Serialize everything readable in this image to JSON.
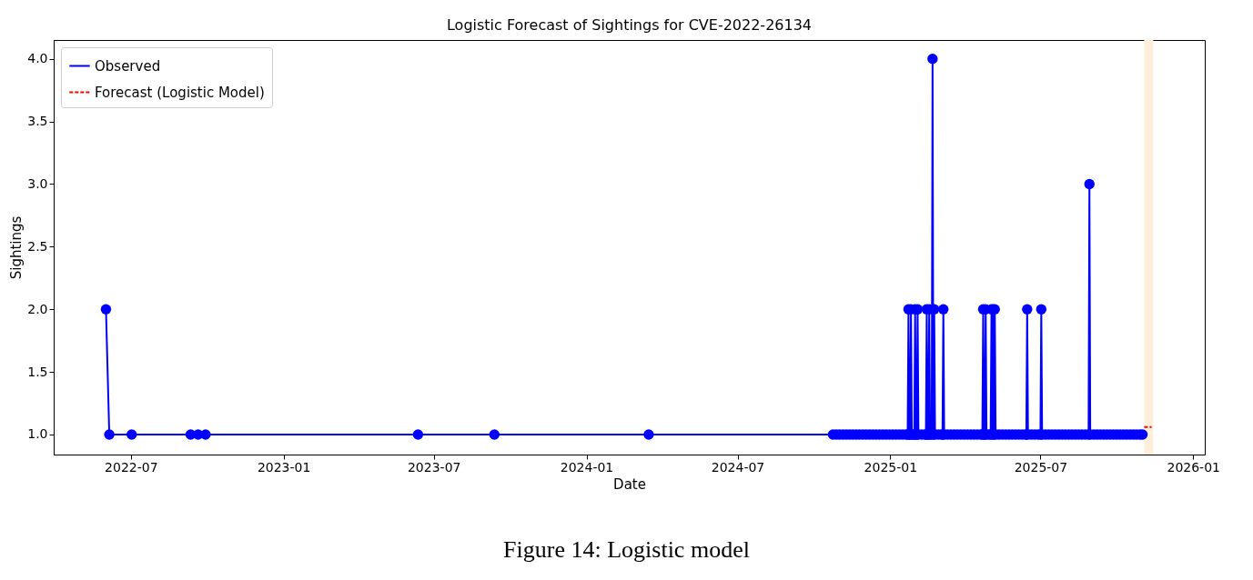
{
  "chart_data": {
    "type": "line",
    "title": "Logistic Forecast of Sightings for CVE-2022-26134",
    "xlabel": "Date",
    "ylabel": "Sightings",
    "annotations": [
      "Figure 14: Logistic model"
    ],
    "xlim": [
      "2022-03-30",
      "2026-01-15"
    ],
    "xticks": [
      {
        "value": "2022-07-01",
        "label": "2022-07"
      },
      {
        "value": "2023-01-01",
        "label": "2023-01"
      },
      {
        "value": "2023-07-01",
        "label": "2023-07"
      },
      {
        "value": "2024-01-01",
        "label": "2024-01"
      },
      {
        "value": "2024-07-01",
        "label": "2024-07"
      },
      {
        "value": "2025-01-01",
        "label": "2025-01"
      },
      {
        "value": "2025-07-01",
        "label": "2025-07"
      },
      {
        "value": "2026-01-01",
        "label": "2026-01"
      }
    ],
    "ylim": [
      0.84,
      4.15
    ],
    "yticks": [
      {
        "value": 1,
        "label": "1.0"
      },
      {
        "value": 1.5,
        "label": "1.5"
      },
      {
        "value": 2,
        "label": "2.0"
      },
      {
        "value": 2.5,
        "label": "2.5"
      },
      {
        "value": 3,
        "label": "3.0"
      },
      {
        "value": 3.5,
        "label": "3.5"
      },
      {
        "value": 4,
        "label": "4.0"
      }
    ],
    "grid": false,
    "legend": "top left",
    "bands": [
      {
        "axis": "x",
        "from": "2025-11-03",
        "to": "2025-11-14",
        "color": "#fdefdc"
      }
    ],
    "series": [
      {
        "name": "Observed",
        "color": "#0000ff",
        "marker": "circle",
        "line_style": "solid",
        "x": [
          "2022-06-01",
          "2022-06-05",
          "2022-07-02",
          "2022-09-11",
          "2022-09-20",
          "2022-09-29",
          "2023-06-12",
          "2023-09-12",
          "2024-03-16",
          "2024-10-24",
          "2024-10-28",
          "2024-11-01",
          "2024-11-05",
          "2024-11-09",
          "2024-11-13",
          "2024-11-17",
          "2024-11-21",
          "2024-11-25",
          "2024-11-29",
          "2024-12-03",
          "2024-12-07",
          "2024-12-11",
          "2024-12-15",
          "2024-12-19",
          "2024-12-23",
          "2024-12-27",
          "2024-12-31",
          "2025-01-04",
          "2025-01-08",
          "2025-01-12",
          "2025-01-16",
          "2025-01-20",
          "2025-01-22",
          "2025-01-23",
          "2025-01-24",
          "2025-01-25",
          "2025-01-26",
          "2025-01-27",
          "2025-01-29",
          "2025-01-30",
          "2025-01-31",
          "2025-02-01",
          "2025-02-02",
          "2025-02-03",
          "2025-02-04",
          "2025-02-08",
          "2025-02-12",
          "2025-02-13",
          "2025-02-14",
          "2025-02-15",
          "2025-02-16",
          "2025-02-17",
          "2025-02-18",
          "2025-02-20",
          "2025-02-21",
          "2025-02-22",
          "2025-02-23",
          "2025-02-24",
          "2025-02-28",
          "2025-03-04",
          "2025-03-05",
          "2025-03-06",
          "2025-03-07",
          "2025-03-11",
          "2025-03-15",
          "2025-03-19",
          "2025-03-23",
          "2025-03-27",
          "2025-03-31",
          "2025-04-04",
          "2025-04-08",
          "2025-04-12",
          "2025-04-16",
          "2025-04-20",
          "2025-04-22",
          "2025-04-23",
          "2025-04-24",
          "2025-04-25",
          "2025-04-26",
          "2025-04-27",
          "2025-04-30",
          "2025-05-02",
          "2025-05-03",
          "2025-05-04",
          "2025-05-05",
          "2025-05-06",
          "2025-05-07",
          "2025-05-08",
          "2025-05-12",
          "2025-05-16",
          "2025-05-20",
          "2025-05-24",
          "2025-05-28",
          "2025-06-01",
          "2025-06-05",
          "2025-06-09",
          "2025-06-13",
          "2025-06-14",
          "2025-06-15",
          "2025-06-16",
          "2025-06-20",
          "2025-06-24",
          "2025-06-28",
          "2025-07-01",
          "2025-07-02",
          "2025-07-03",
          "2025-07-07",
          "2025-07-11",
          "2025-07-15",
          "2025-07-19",
          "2025-07-23",
          "2025-07-27",
          "2025-07-31",
          "2025-08-04",
          "2025-08-08",
          "2025-08-12",
          "2025-08-16",
          "2025-08-20",
          "2025-08-24",
          "2025-08-28",
          "2025-08-29",
          "2025-08-30",
          "2025-09-03",
          "2025-09-07",
          "2025-09-11",
          "2025-09-15",
          "2025-09-19",
          "2025-09-23",
          "2025-09-27",
          "2025-10-01",
          "2025-10-05",
          "2025-10-09",
          "2025-10-13",
          "2025-10-17",
          "2025-10-21",
          "2025-10-25",
          "2025-10-29",
          "2025-11-01"
        ],
        "values": [
          2,
          1,
          1,
          1,
          1,
          1,
          1,
          1,
          1,
          1,
          1,
          1,
          1,
          1,
          1,
          1,
          1,
          1,
          1,
          1,
          1,
          1,
          1,
          1,
          1,
          1,
          1,
          1,
          1,
          1,
          1,
          1,
          1,
          2,
          1,
          1,
          2,
          1,
          1,
          1,
          2,
          1,
          1,
          2,
          1,
          1,
          1,
          1,
          2,
          1,
          1,
          2,
          1,
          1,
          4,
          1,
          2,
          1,
          1,
          1,
          1,
          2,
          1,
          1,
          1,
          1,
          1,
          1,
          1,
          1,
          1,
          1,
          1,
          1,
          1,
          2,
          1,
          1,
          2,
          1,
          1,
          1,
          2,
          1,
          2,
          1,
          2,
          1,
          1,
          1,
          1,
          1,
          1,
          1,
          1,
          1,
          1,
          1,
          2,
          1,
          1,
          1,
          1,
          1,
          2,
          1,
          1,
          1,
          1,
          1,
          1,
          1,
          1,
          1,
          1,
          1,
          1,
          1,
          1,
          1,
          3,
          1,
          1,
          1,
          1,
          1,
          1,
          1,
          1,
          1,
          1,
          1,
          1,
          1,
          1,
          1,
          1,
          1
        ]
      },
      {
        "name": "Forecast (Logistic Model)",
        "color": "#ff0000",
        "marker": "none",
        "line_style": "dashed",
        "x": [
          "2025-11-03",
          "2025-11-12"
        ],
        "values": [
          1.06,
          1.06
        ]
      }
    ]
  }
}
